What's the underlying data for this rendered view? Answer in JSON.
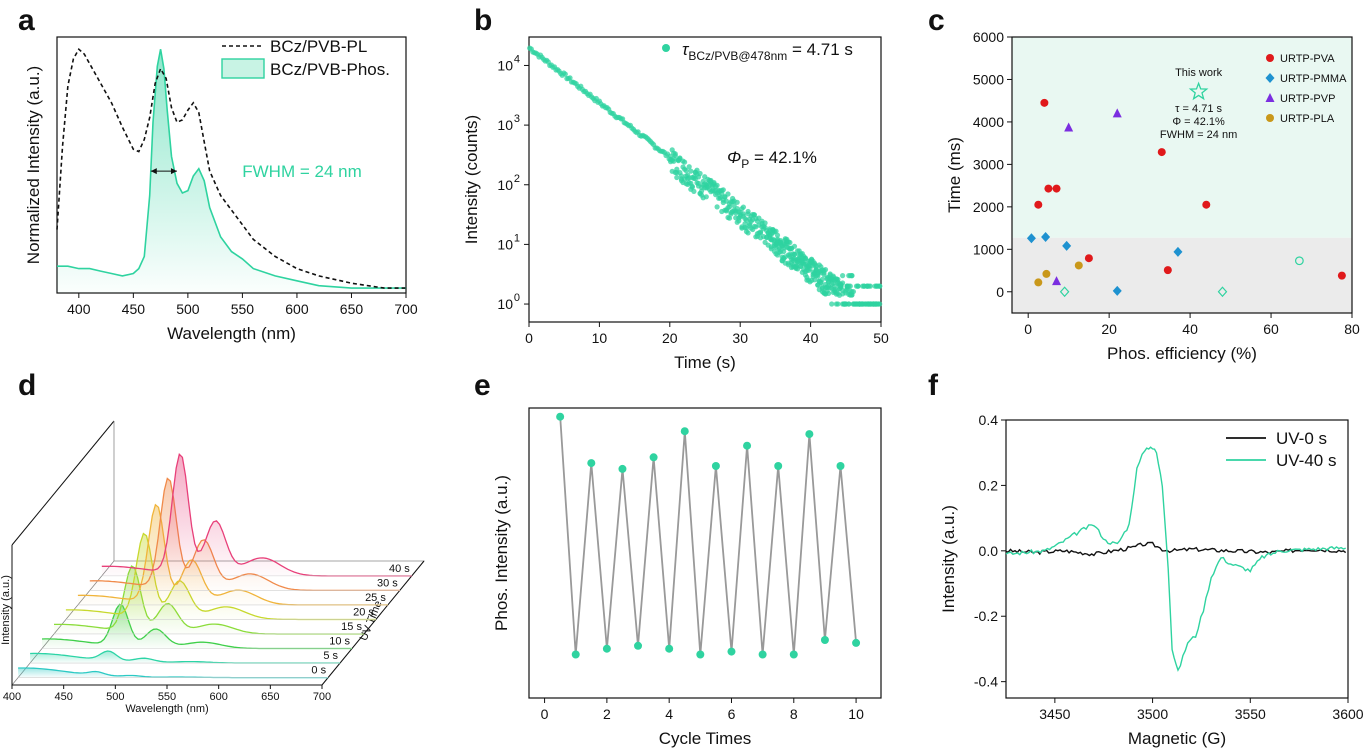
{
  "panels": {
    "a": "a",
    "b": "b",
    "c": "c",
    "d": "d",
    "e": "e",
    "f": "f"
  },
  "chart_data": [
    {
      "id": "a",
      "type": "line",
      "xlabel": "Wavelength (nm)",
      "ylabel": "Normalized Intensity (a.u.)",
      "xlim": [
        380,
        700
      ],
      "ylim": [
        0,
        1.05
      ],
      "xticks": [
        "400",
        "450",
        "500",
        "550",
        "600",
        "650",
        "700"
      ],
      "series": [
        {
          "name": "BCz/PVB-PL",
          "style": "dashed",
          "color": "#111111",
          "x": [
            380,
            385,
            390,
            395,
            400,
            405,
            410,
            415,
            420,
            430,
            440,
            450,
            455,
            460,
            465,
            470,
            475,
            480,
            485,
            490,
            495,
            500,
            505,
            510,
            515,
            520,
            530,
            540,
            550,
            560,
            580,
            600,
            620,
            650,
            680,
            700
          ],
          "y": [
            0.26,
            0.6,
            0.85,
            0.96,
            1.0,
            0.98,
            0.94,
            0.9,
            0.86,
            0.78,
            0.68,
            0.59,
            0.58,
            0.63,
            0.72,
            0.86,
            0.92,
            0.88,
            0.76,
            0.7,
            0.71,
            0.75,
            0.78,
            0.74,
            0.62,
            0.5,
            0.4,
            0.34,
            0.28,
            0.22,
            0.15,
            0.1,
            0.07,
            0.04,
            0.02,
            0.02
          ]
        },
        {
          "name": "BCz/PVB-Phos.",
          "style": "solid-filled",
          "color": "#2fd3a0",
          "x": [
            380,
            390,
            400,
            410,
            420,
            430,
            440,
            450,
            455,
            460,
            465,
            468,
            472,
            475,
            478,
            481,
            485,
            490,
            495,
            500,
            505,
            510,
            515,
            520,
            530,
            540,
            550,
            560,
            580,
            600,
            620,
            650,
            680,
            700
          ],
          "y": [
            0.11,
            0.11,
            0.1,
            0.1,
            0.09,
            0.08,
            0.07,
            0.08,
            0.1,
            0.15,
            0.4,
            0.7,
            0.93,
            1.0,
            0.92,
            0.75,
            0.56,
            0.45,
            0.41,
            0.42,
            0.48,
            0.51,
            0.46,
            0.35,
            0.23,
            0.17,
            0.14,
            0.1,
            0.07,
            0.05,
            0.03,
            0.02,
            0.02,
            0.02
          ]
        }
      ],
      "annotations": [
        "FWHM = 24 nm"
      ]
    },
    {
      "id": "b",
      "type": "scatter",
      "xlabel": "Time (s)",
      "ylabel": "Intensity (counts)",
      "xlim": [
        0,
        50
      ],
      "ylim": [
        0.5,
        30000
      ],
      "yscale": "log",
      "xticks": [
        "0",
        "10",
        "20",
        "30",
        "40",
        "50"
      ],
      "yticks": [
        "10",
        "10",
        "10",
        "10",
        "10"
      ],
      "ytick_exponents": [
        "0",
        "1",
        "2",
        "3",
        "4"
      ],
      "series": [
        {
          "name": "τ",
          "name_subscript": "BCz/PVB@478nm",
          "name_suffix": " = 4.71 s",
          "color": "#2fd3a0",
          "decay": {
            "I0": 20000,
            "tau": 4.71
          }
        }
      ],
      "annotations": [
        {
          "symbol": "Φ",
          "subscript": "P",
          "text": " = 42.1%"
        }
      ]
    },
    {
      "id": "c",
      "type": "scatter",
      "xlabel": "Phos. efficiency (%)",
      "ylabel": "Time (ms)",
      "xlim": [
        -4,
        80
      ],
      "ylim": [
        -500,
        6000
      ],
      "xticks": [
        "0",
        "20",
        "40",
        "60",
        "80"
      ],
      "yticks": [
        "0",
        "1000",
        "2000",
        "3000",
        "4000",
        "5000",
        "6000"
      ],
      "series": [
        {
          "name": "URTP-PVA",
          "marker": "circle",
          "color": "#e0191b",
          "x": [
            4.0,
            2.5,
            5.0,
            7.0,
            15.0,
            33.0,
            34.5,
            44.0,
            77.5
          ],
          "y": [
            4450,
            2050,
            2430,
            2430,
            790,
            3290,
            510,
            2050,
            380
          ]
        },
        {
          "name": "URTP-PMMA",
          "marker": "diamond",
          "color": "#1e92d0",
          "x": [
            0.8,
            4.3,
            9.5,
            22.0,
            37.0
          ],
          "y": [
            1260,
            1290,
            1080,
            20,
            940
          ]
        },
        {
          "name": "URTP-PVP",
          "marker": "triangle",
          "color": "#7b2ee0",
          "x": [
            10.0,
            22.0,
            7.0
          ],
          "y": [
            3870,
            4200,
            250
          ]
        },
        {
          "name": "URTP-PLA",
          "marker": "circle",
          "color": "#c9981a",
          "x": [
            2.5,
            4.5,
            12.5
          ],
          "y": [
            220,
            420,
            620
          ]
        },
        {
          "name": "",
          "marker": "open",
          "color": "#2fd3a0",
          "x": [
            9.0,
            48.0,
            67.0
          ],
          "y": [
            0,
            0,
            730
          ]
        }
      ],
      "highlight": {
        "marker": "star",
        "x": 42.1,
        "y": 4710,
        "color": "#2fd3a0"
      },
      "annotations": [
        "This work",
        "τ = 4.71 s",
        "Φ = 42.1%",
        "FWHM = 24 nm"
      ]
    },
    {
      "id": "d",
      "type": "area",
      "xlabel": "Wavelength (nm)",
      "ylabel": "Intensity (a.u.)",
      "zlabel": "UV Time",
      "xticks": [
        "400",
        "450",
        "500",
        "550",
        "600",
        "650",
        "700"
      ],
      "series": [
        {
          "name": "0 s",
          "color": "#2cc9c4",
          "scale": 0.03
        },
        {
          "name": "5 s",
          "color": "#2cd4a6",
          "scale": 0.08
        },
        {
          "name": "10 s",
          "color": "#3fcf4a",
          "scale": 0.35
        },
        {
          "name": "15 s",
          "color": "#8bdc3a",
          "scale": 0.55
        },
        {
          "name": "20 s",
          "color": "#c7d82d",
          "scale": 0.7
        },
        {
          "name": "25 s",
          "color": "#f0b43a",
          "scale": 0.82
        },
        {
          "name": "30 s",
          "color": "#f08a4a",
          "scale": 0.92
        },
        {
          "name": "40 s",
          "color": "#e8407a",
          "scale": 1.0
        }
      ]
    },
    {
      "id": "e",
      "type": "line",
      "xlabel": "Cycle Times",
      "ylabel": "Phos. Intensity (a.u.)",
      "xlim": [
        -0.5,
        10.8
      ],
      "ylim": [
        0,
        1
      ],
      "xticks": [
        "0",
        "2",
        "4",
        "6",
        "8",
        "10"
      ],
      "series": [
        {
          "name": "",
          "color": "#999999",
          "marker_color": "#2fd3a0",
          "x": [
            0.5,
            1,
            1.5,
            2,
            2.5,
            3,
            3.5,
            4,
            4.5,
            5,
            5.5,
            6,
            6.5,
            7,
            7.5,
            8,
            8.5,
            9,
            9.5,
            10
          ],
          "y": [
            0.97,
            0.15,
            0.81,
            0.17,
            0.79,
            0.18,
            0.83,
            0.17,
            0.92,
            0.15,
            0.8,
            0.16,
            0.87,
            0.15,
            0.8,
            0.15,
            0.91,
            0.2,
            0.8,
            0.19
          ]
        }
      ]
    },
    {
      "id": "f",
      "type": "line",
      "xlabel": "Magnetic (G)",
      "ylabel": "Intensity (a.u.)",
      "xlim": [
        3425,
        3600
      ],
      "ylim": [
        -0.45,
        0.4
      ],
      "xticks": [
        "3450",
        "3500",
        "3550",
        "3600"
      ],
      "yticks": [
        "-0.4",
        "-0.2",
        "0.0",
        "0.2",
        "0.4"
      ],
      "series": [
        {
          "name": "UV-0 s",
          "color": "#111111",
          "x": [
            3425,
            3440,
            3455,
            3470,
            3480,
            3490,
            3495,
            3500,
            3505,
            3510,
            3520,
            3540,
            3560,
            3580,
            3600
          ],
          "y": [
            0.0,
            -0.005,
            0.0,
            -0.01,
            0.0,
            0.01,
            0.02,
            0.02,
            0.005,
            0.0,
            0.005,
            0.0,
            -0.005,
            0.005,
            0.0
          ]
        },
        {
          "name": "UV-40 s",
          "color": "#2fd3a0",
          "x": [
            3425,
            3445,
            3452,
            3460,
            3466,
            3470,
            3476,
            3482,
            3488,
            3492,
            3496,
            3499,
            3502,
            3505,
            3508,
            3510,
            3513,
            3518,
            3522,
            3526,
            3530,
            3535,
            3540,
            3545,
            3550,
            3556,
            3565,
            3580,
            3600
          ],
          "y": [
            -0.01,
            0.0,
            0.02,
            0.05,
            0.07,
            0.08,
            0.03,
            0.02,
            0.08,
            0.25,
            0.31,
            0.32,
            0.3,
            0.2,
            -0.05,
            -0.3,
            -0.37,
            -0.28,
            -0.26,
            -0.18,
            -0.08,
            -0.02,
            -0.04,
            -0.05,
            -0.06,
            -0.02,
            0.0,
            0.005,
            0.01
          ]
        }
      ]
    }
  ]
}
